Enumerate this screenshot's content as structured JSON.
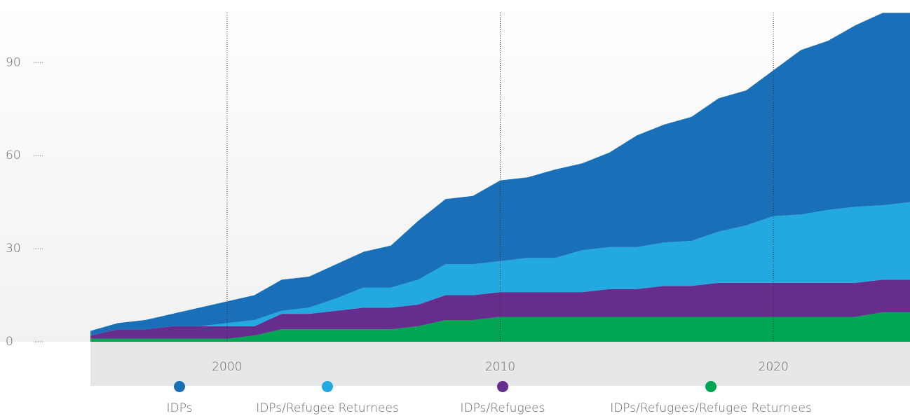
{
  "chart_data": {
    "type": "stacked_area",
    "x": [
      1995,
      1996,
      1997,
      1998,
      1999,
      2000,
      2001,
      2002,
      2003,
      2004,
      2005,
      2006,
      2007,
      2008,
      2009,
      2010,
      2011,
      2012,
      2013,
      2014,
      2015,
      2016,
      2017,
      2018,
      2019,
      2020,
      2021,
      2022,
      2023,
      2024,
      2025
    ],
    "series": [
      {
        "name": "IDPs",
        "color": "#1a70b8",
        "values": [
          1.5,
          2,
          3,
          4,
          6,
          7,
          8,
          10,
          10,
          11,
          11.5,
          13.5,
          19,
          21,
          22,
          26,
          26,
          28.5,
          28,
          30.5,
          36,
          38,
          40,
          43,
          43.5,
          47,
          53,
          54.5,
          58.5,
          62,
          61
        ]
      },
      {
        "name": "IDPs/Refugee Returnees",
        "color": "#23a8e0",
        "values": [
          0,
          0,
          0,
          0,
          0,
          1,
          2,
          1,
          2,
          4,
          6.5,
          6.5,
          8,
          10,
          10,
          10,
          11,
          11,
          13.5,
          13.5,
          13.5,
          14,
          14.5,
          16.5,
          18.5,
          21.5,
          22,
          23.5,
          24.5,
          24,
          25
        ]
      },
      {
        "name": "IDPs/Refugees",
        "color": "#662d8c",
        "values": [
          1,
          3,
          3,
          4,
          4,
          4,
          3,
          5,
          5,
          6,
          7,
          7,
          7,
          8,
          8,
          8,
          8,
          8,
          8,
          9,
          9,
          10,
          10,
          11,
          11,
          11,
          11,
          11,
          11,
          10.5,
          10.5
        ]
      },
      {
        "name": "IDPs/Refugees/Refugee Returnees",
        "color": "#00a651",
        "values": [
          1,
          1,
          1,
          1,
          1,
          1,
          2,
          4,
          4,
          4,
          4,
          4,
          5,
          7,
          7,
          8,
          8,
          8,
          8,
          8,
          8,
          8,
          8,
          8,
          8,
          8,
          8,
          8,
          8,
          9.5,
          9.5
        ]
      }
    ],
    "xlim": [
      1995,
      2025
    ],
    "xticks": [
      2000,
      2010,
      2020
    ],
    "ylim": [
      0,
      110
    ],
    "yticks": [
      0,
      30,
      60,
      90
    ]
  }
}
